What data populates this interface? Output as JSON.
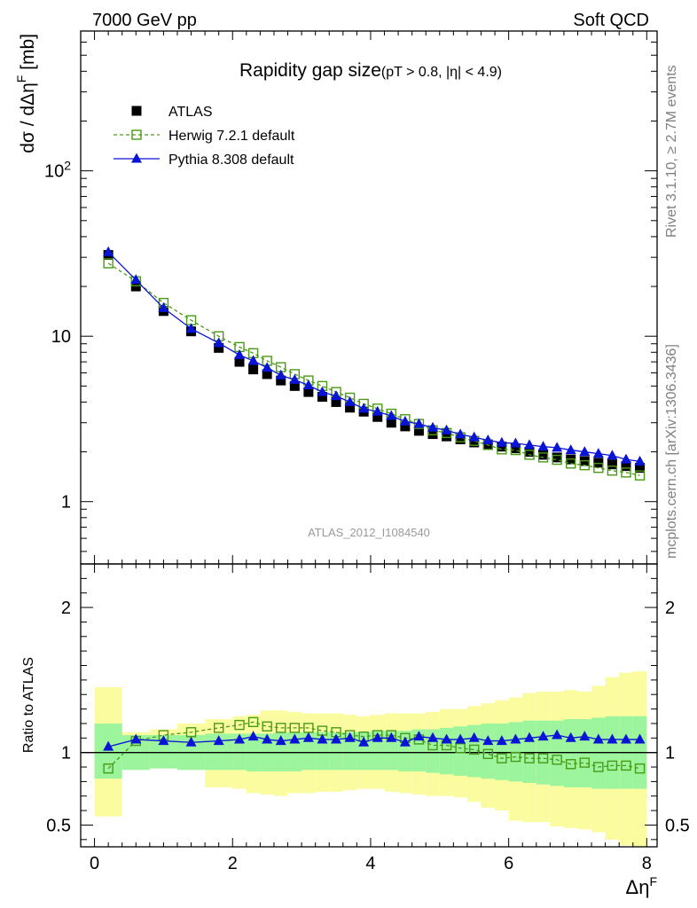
{
  "header": {
    "left": "7000 GeV pp",
    "right": "Soft QCD"
  },
  "side_labels": {
    "top": "Rivet 3.1.10, ≥ 2.7M events",
    "bottom": "mcplots.cern.ch [arXiv:1306.3436]"
  },
  "analysis_ref": "ATLAS_2012_I1084540",
  "chart_data": [
    {
      "type": "scatter",
      "title_main": "Rapidity gap size",
      "title_sub": "(pT > 0.8, |η| < 4.9)",
      "ylabel": "dσ / dΔηF [mb]",
      "yscale": "log",
      "xlim": [
        -0.2,
        8.15
      ],
      "ylim": [
        0.42,
        700
      ],
      "yticks": [
        {
          "value": 1,
          "label": "1"
        },
        {
          "value": 10,
          "label": "10"
        },
        {
          "value": 100,
          "label": "10²"
        }
      ],
      "legend_position": "top-left",
      "x": [
        0.2,
        0.6,
        1.0,
        1.4,
        1.8,
        2.1,
        2.3,
        2.5,
        2.7,
        2.9,
        3.1,
        3.3,
        3.5,
        3.7,
        3.9,
        4.1,
        4.3,
        4.5,
        4.7,
        4.9,
        5.1,
        5.3,
        5.5,
        5.7,
        5.9,
        6.1,
        6.3,
        6.5,
        6.7,
        6.9,
        7.1,
        7.3,
        7.5,
        7.7,
        7.9
      ],
      "series": [
        {
          "name": "ATLAS",
          "color": "#000000",
          "marker": "filled-square",
          "values": [
            31,
            20,
            14.2,
            10.7,
            8.5,
            7.0,
            6.3,
            5.9,
            5.4,
            5.0,
            4.6,
            4.3,
            4.0,
            3.7,
            3.5,
            3.25,
            3.0,
            2.85,
            2.68,
            2.56,
            2.48,
            2.38,
            2.28,
            2.22,
            2.15,
            2.1,
            2.0,
            1.92,
            1.85,
            1.8,
            1.76,
            1.72,
            1.68,
            1.64,
            1.6
          ]
        },
        {
          "name": "Herwig 7.2.1 default",
          "color": "#4a9a16",
          "marker": "open-square",
          "line": "dashed",
          "values": [
            27.6,
            21.5,
            15.9,
            12.5,
            10.0,
            8.6,
            7.9,
            7.1,
            6.5,
            5.9,
            5.4,
            5.0,
            4.6,
            4.25,
            3.9,
            3.65,
            3.4,
            3.15,
            2.95,
            2.7,
            2.6,
            2.45,
            2.33,
            2.2,
            2.07,
            2.05,
            1.92,
            1.85,
            1.79,
            1.7,
            1.66,
            1.6,
            1.54,
            1.5,
            1.44
          ]
        },
        {
          "name": "Pythia 8.308 default",
          "color": "#0a14d6",
          "marker": "filled-triangle",
          "line": "solid",
          "values": [
            32.3,
            21.9,
            14.8,
            11.1,
            9.1,
            7.7,
            7.1,
            6.45,
            5.8,
            5.45,
            5.05,
            4.6,
            4.35,
            4.0,
            3.65,
            3.5,
            3.3,
            3.05,
            2.95,
            2.8,
            2.7,
            2.55,
            2.45,
            2.35,
            2.27,
            2.25,
            2.2,
            2.15,
            2.12,
            2.05,
            2.0,
            1.95,
            1.9,
            1.8,
            1.75
          ]
        }
      ]
    },
    {
      "type": "scatter",
      "ylabel": "Ratio to ATLAS",
      "xlabel": "ΔηF",
      "xlim": [
        -0.2,
        8.15
      ],
      "ylim": [
        0.35,
        2.3
      ],
      "xticks": [
        0,
        2,
        4,
        6,
        8
      ],
      "yticks": [
        0.5,
        1,
        2
      ],
      "reference_line": 1,
      "bin_edges": [
        0,
        0.4,
        0.8,
        1.2,
        1.6,
        2.0,
        2.2,
        2.4,
        2.6,
        2.8,
        3.0,
        3.2,
        3.4,
        3.6,
        3.8,
        4.0,
        4.2,
        4.4,
        4.6,
        4.8,
        5.0,
        5.2,
        5.4,
        5.6,
        5.8,
        6.0,
        6.2,
        6.4,
        6.6,
        6.8,
        7.0,
        7.2,
        7.4,
        7.6,
        7.8,
        8.0
      ],
      "band_stat": {
        "color": "#9cf59c",
        "lower": [
          0.82,
          0.88,
          0.89,
          0.88,
          0.88,
          0.88,
          0.87,
          0.87,
          0.87,
          0.87,
          0.88,
          0.88,
          0.88,
          0.88,
          0.88,
          0.88,
          0.88,
          0.87,
          0.87,
          0.86,
          0.85,
          0.84,
          0.83,
          0.82,
          0.81,
          0.8,
          0.79,
          0.78,
          0.77,
          0.76,
          0.76,
          0.75,
          0.75,
          0.75,
          0.75
        ],
        "upper": [
          1.2,
          1.12,
          1.12,
          1.12,
          1.13,
          1.13,
          1.13,
          1.13,
          1.14,
          1.14,
          1.14,
          1.14,
          1.14,
          1.14,
          1.14,
          1.15,
          1.15,
          1.15,
          1.16,
          1.16,
          1.17,
          1.18,
          1.19,
          1.2,
          1.2,
          1.21,
          1.22,
          1.22,
          1.22,
          1.23,
          1.23,
          1.24,
          1.25,
          1.25,
          1.25
        ]
      },
      "band_total": {
        "color": "#fbfc9f",
        "lower": [
          0.56,
          0.9,
          0.9,
          0.89,
          0.76,
          0.75,
          0.72,
          0.71,
          0.7,
          0.72,
          0.72,
          0.73,
          0.73,
          0.74,
          0.75,
          0.75,
          0.73,
          0.72,
          0.71,
          0.7,
          0.7,
          0.69,
          0.66,
          0.62,
          0.6,
          0.53,
          0.52,
          0.52,
          0.49,
          0.48,
          0.47,
          0.45,
          0.4,
          0.36,
          0.35
        ],
        "upper": [
          1.45,
          1.14,
          1.16,
          1.2,
          1.23,
          1.25,
          1.26,
          1.29,
          1.29,
          1.28,
          1.27,
          1.27,
          1.27,
          1.26,
          1.25,
          1.26,
          1.27,
          1.27,
          1.27,
          1.28,
          1.3,
          1.3,
          1.32,
          1.34,
          1.36,
          1.38,
          1.41,
          1.42,
          1.42,
          1.43,
          1.42,
          1.46,
          1.52,
          1.55,
          1.56
        ]
      },
      "series": [
        {
          "name": "Herwig 7.2.1 default",
          "color": "#4a9a16",
          "marker": "open-square",
          "line": "dashed",
          "values": [
            0.89,
            1.08,
            1.12,
            1.14,
            1.17,
            1.19,
            1.21,
            1.18,
            1.17,
            1.17,
            1.17,
            1.15,
            1.14,
            1.12,
            1.11,
            1.12,
            1.12,
            1.1,
            1.09,
            1.05,
            1.05,
            1.03,
            1.02,
            0.99,
            0.96,
            0.97,
            0.96,
            0.96,
            0.95,
            0.92,
            0.93,
            0.9,
            0.91,
            0.91,
            0.89
          ]
        },
        {
          "name": "Pythia 8.308 default",
          "color": "#0a14d6",
          "marker": "filled-triangle",
          "line": "solid",
          "values": [
            1.04,
            1.09,
            1.08,
            1.07,
            1.08,
            1.09,
            1.11,
            1.09,
            1.08,
            1.09,
            1.1,
            1.09,
            1.09,
            1.1,
            1.07,
            1.1,
            1.1,
            1.07,
            1.11,
            1.1,
            1.09,
            1.09,
            1.1,
            1.08,
            1.08,
            1.09,
            1.1,
            1.11,
            1.12,
            1.1,
            1.11,
            1.09,
            1.09,
            1.09,
            1.09
          ]
        }
      ]
    }
  ]
}
